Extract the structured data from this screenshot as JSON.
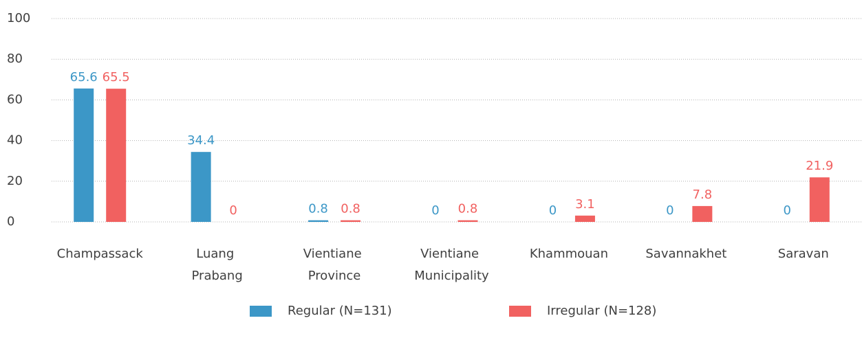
{
  "chart_data": {
    "type": "bar",
    "categories": [
      "Champassack",
      "Luang Prabang",
      "Vientiane Province",
      "Vientiane Municipality",
      "Khammouan",
      "Savannakhet",
      "Saravan"
    ],
    "series": [
      {
        "name": "Regular (N=131)",
        "color": "#3c97c7",
        "values": [
          65.6,
          34.4,
          0.8,
          0,
          0,
          0,
          0
        ]
      },
      {
        "name": "Irregular (N=128)",
        "color": "#f16160",
        "values": [
          65.5,
          0,
          0.8,
          0.8,
          3.1,
          7.8,
          21.9
        ]
      }
    ],
    "ylim": [
      0,
      100
    ],
    "yticks": [
      0,
      20,
      40,
      60,
      80,
      100
    ],
    "grid": true,
    "legend": "bottom"
  }
}
